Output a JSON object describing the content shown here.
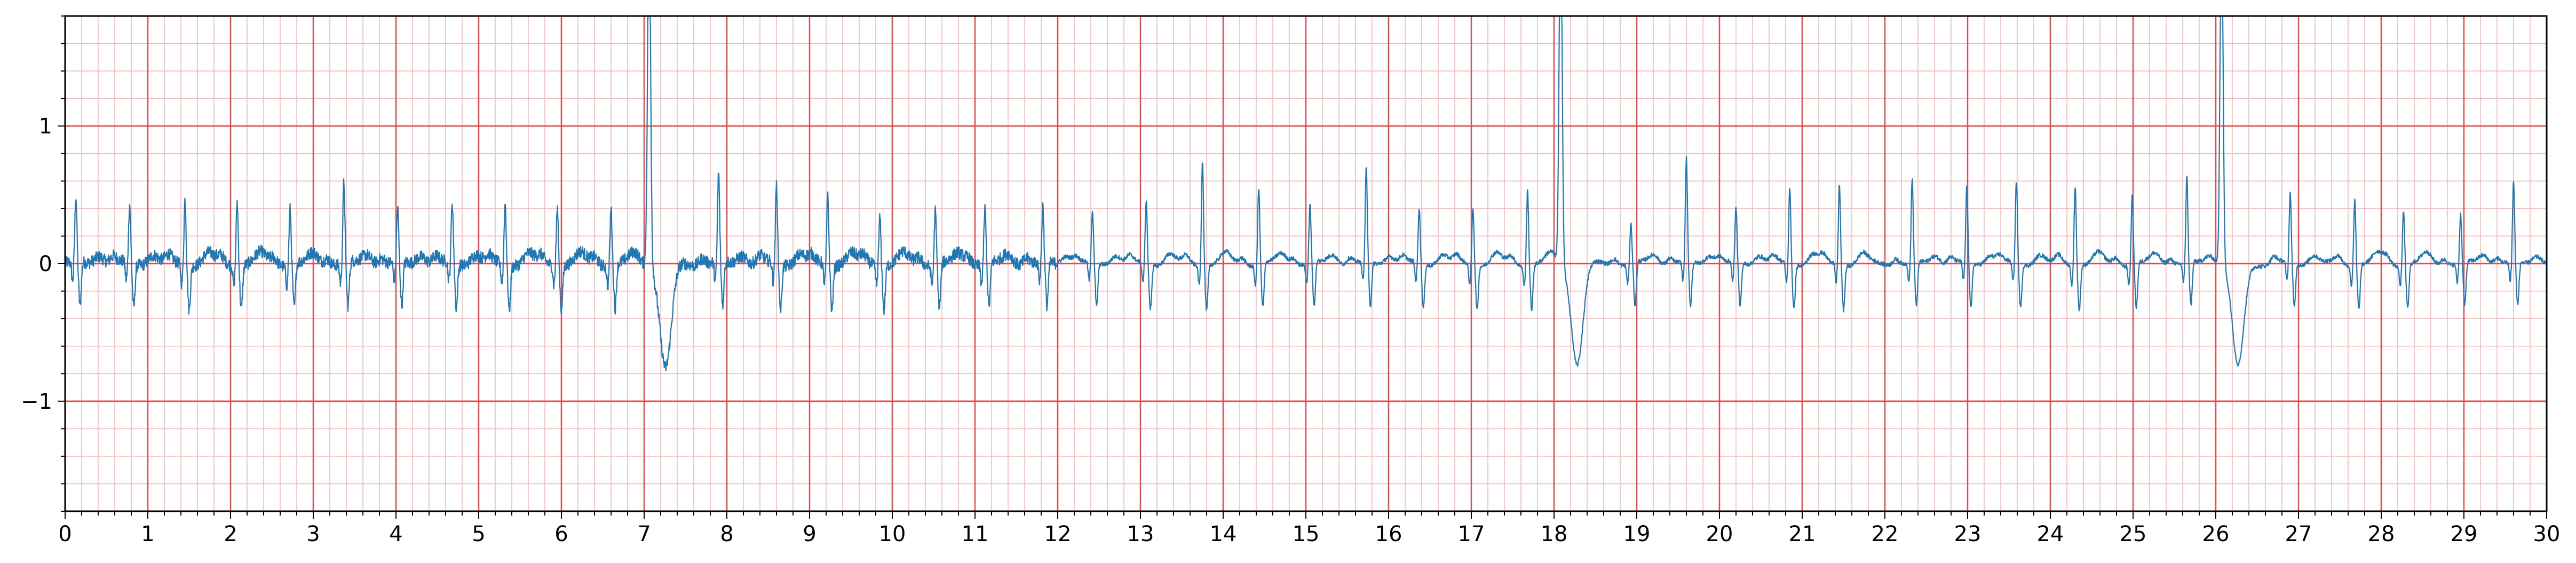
{
  "chart_data": {
    "type": "line",
    "title": "",
    "xlabel": "",
    "ylabel": "",
    "xlim": [
      0,
      30
    ],
    "ylim": [
      -1.8,
      1.8
    ],
    "x_ticks": [
      0,
      1,
      2,
      3,
      4,
      5,
      6,
      7,
      8,
      9,
      10,
      11,
      12,
      13,
      14,
      15,
      16,
      17,
      18,
      19,
      20,
      21,
      22,
      23,
      24,
      25,
      26,
      27,
      28,
      29,
      30
    ],
    "x_tick_labels": [
      "0",
      "1",
      "2",
      "3",
      "4",
      "5",
      "6",
      "7",
      "8",
      "9",
      "10",
      "11",
      "12",
      "13",
      "14",
      "15",
      "16",
      "17",
      "18",
      "19",
      "20",
      "21",
      "22",
      "23",
      "24",
      "25",
      "26",
      "27",
      "28",
      "29",
      "30"
    ],
    "y_ticks": [
      -1,
      0,
      1
    ],
    "y_tick_labels": [
      "−1",
      "0",
      "1"
    ],
    "grid": "ecg-paper",
    "grid_major_color": "#e8494a",
    "grid_minor_color": "#f7b9b9",
    "line_color": "#1f77b4",
    "legend": "none",
    "series": [
      {
        "name": "",
        "beat_times": [
          0.13,
          0.78,
          1.45,
          2.08,
          2.72,
          3.37,
          4.02,
          4.68,
          5.32,
          5.95,
          6.6,
          7.06,
          7.9,
          8.6,
          9.22,
          9.85,
          10.52,
          11.12,
          11.82,
          12.42,
          13.07,
          13.75,
          14.43,
          15.05,
          15.73,
          16.37,
          17.02,
          17.68,
          18.08,
          18.93,
          19.6,
          20.2,
          20.85,
          21.45,
          22.33,
          22.99,
          23.59,
          24.3,
          24.99,
          25.65,
          26.07,
          26.9,
          27.68,
          28.27,
          28.96,
          29.6
        ],
        "beat_peaks": [
          0.47,
          0.42,
          0.48,
          0.47,
          0.41,
          0.58,
          0.39,
          0.44,
          0.45,
          0.42,
          0.42,
          1.8,
          0.65,
          0.57,
          0.5,
          0.35,
          0.39,
          0.4,
          0.4,
          0.37,
          0.46,
          0.77,
          0.56,
          0.42,
          0.68,
          0.4,
          0.42,
          0.55,
          1.8,
          0.28,
          0.75,
          0.4,
          0.55,
          0.58,
          0.6,
          0.55,
          0.6,
          0.58,
          0.5,
          0.62,
          1.8,
          0.5,
          0.48,
          0.4,
          0.35,
          0.58
        ],
        "ectopic_beat_times": [
          7.06,
          18.08,
          26.07
        ],
        "ectopic_trough": [
          -0.76,
          -0.72,
          -0.75
        ]
      }
    ]
  }
}
